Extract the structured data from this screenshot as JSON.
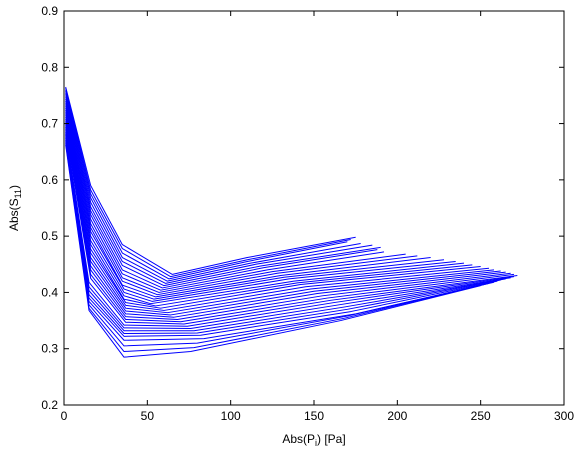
{
  "chart_data": {
    "type": "line",
    "xlabel": "Abs(P",
    "xlabel_sub": "i",
    "xlabel_suffix": ") [Pa]",
    "ylabel": "Abs(S",
    "ylabel_sub": "11",
    "ylabel_suffix": ")",
    "xlim": [
      0,
      300
    ],
    "ylim": [
      0.2,
      0.9
    ],
    "xticks": [
      0,
      50,
      100,
      150,
      200,
      250,
      300
    ],
    "yticks": [
      0.2,
      0.3,
      0.4,
      0.5,
      0.6,
      0.7,
      0.8,
      0.9
    ],
    "xtick_labels": [
      "0",
      "50",
      "100",
      "150",
      "200",
      "250",
      "300"
    ],
    "ytick_labels": [
      "0.2",
      "0.3",
      "0.4",
      "0.5",
      "0.6",
      "0.7",
      "0.8",
      "0.9"
    ],
    "grid": false,
    "line_color": "#0000ff",
    "series": [
      {
        "x": [
          1,
          16,
          35,
          65,
          110,
          175
        ],
        "y": [
          0.765,
          0.59,
          0.485,
          0.432,
          0.462,
          0.498
        ]
      },
      {
        "x": [
          1,
          16,
          35,
          64,
          110,
          172
        ],
        "y": [
          0.763,
          0.582,
          0.478,
          0.428,
          0.458,
          0.494
        ]
      },
      {
        "x": [
          1,
          16,
          35,
          63,
          110,
          170
        ],
        "y": [
          0.76,
          0.575,
          0.47,
          0.424,
          0.455,
          0.49
        ]
      },
      {
        "x": [
          1,
          16,
          35,
          62,
          112,
          178
        ],
        "y": [
          0.758,
          0.568,
          0.462,
          0.42,
          0.452,
          0.487
        ]
      },
      {
        "x": [
          1,
          16,
          35,
          61,
          115,
          185
        ],
        "y": [
          0.755,
          0.56,
          0.455,
          0.416,
          0.45,
          0.484
        ]
      },
      {
        "x": [
          1,
          16,
          35,
          60,
          118,
          190
        ],
        "y": [
          0.752,
          0.552,
          0.448,
          0.412,
          0.447,
          0.48
        ]
      },
      {
        "x": [
          1,
          16,
          35,
          59,
          120,
          188
        ],
        "y": [
          0.748,
          0.545,
          0.44,
          0.408,
          0.444,
          0.476
        ]
      },
      {
        "x": [
          1,
          16,
          35,
          58,
          122,
          192
        ],
        "y": [
          0.744,
          0.538,
          0.433,
          0.404,
          0.44,
          0.472
        ]
      },
      {
        "x": [
          1,
          16,
          35,
          57,
          125,
          205
        ],
        "y": [
          0.74,
          0.53,
          0.426,
          0.4,
          0.437,
          0.468
        ]
      },
      {
        "x": [
          1,
          16,
          35,
          56,
          128,
          212
        ],
        "y": [
          0.736,
          0.522,
          0.42,
          0.396,
          0.434,
          0.465
        ]
      },
      {
        "x": [
          1,
          16,
          35,
          55,
          130,
          220
        ],
        "y": [
          0.732,
          0.515,
          0.413,
          0.392,
          0.43,
          0.462
        ]
      },
      {
        "x": [
          1,
          16,
          36,
          54,
          132,
          228
        ],
        "y": [
          0.728,
          0.508,
          0.406,
          0.388,
          0.427,
          0.458
        ]
      },
      {
        "x": [
          1,
          16,
          36,
          53,
          135,
          235
        ],
        "y": [
          0.724,
          0.5,
          0.4,
          0.384,
          0.424,
          0.455
        ]
      },
      {
        "x": [
          1,
          16,
          36,
          52,
          138,
          240
        ],
        "y": [
          0.72,
          0.492,
          0.394,
          0.38,
          0.42,
          0.452
        ]
      },
      {
        "x": [
          1,
          16,
          36,
          55,
          140,
          245
        ],
        "y": [
          0.716,
          0.485,
          0.388,
          0.376,
          0.417,
          0.449
        ]
      },
      {
        "x": [
          1,
          16,
          37,
          58,
          142,
          250
        ],
        "y": [
          0.712,
          0.477,
          0.382,
          0.372,
          0.414,
          0.446
        ]
      },
      {
        "x": [
          1,
          16,
          37,
          60,
          145,
          255
        ],
        "y": [
          0.708,
          0.47,
          0.377,
          0.368,
          0.41,
          0.443
        ]
      },
      {
        "x": [
          1,
          16,
          37,
          62,
          148,
          258
        ],
        "y": [
          0.704,
          0.462,
          0.372,
          0.364,
          0.406,
          0.44
        ]
      },
      {
        "x": [
          1,
          16,
          37,
          64,
          150,
          262
        ],
        "y": [
          0.7,
          0.455,
          0.367,
          0.36,
          0.402,
          0.438
        ]
      },
      {
        "x": [
          1,
          16,
          37,
          66,
          152,
          265
        ],
        "y": [
          0.697,
          0.447,
          0.362,
          0.356,
          0.398,
          0.436
        ]
      },
      {
        "x": [
          1,
          16,
          37,
          68,
          155,
          268
        ],
        "y": [
          0.694,
          0.44,
          0.357,
          0.352,
          0.394,
          0.434
        ]
      },
      {
        "x": [
          1,
          16,
          37,
          70,
          158,
          270
        ],
        "y": [
          0.691,
          0.432,
          0.352,
          0.348,
          0.39,
          0.432
        ]
      },
      {
        "x": [
          1,
          16,
          37,
          72,
          160,
          272
        ],
        "y": [
          0.688,
          0.425,
          0.347,
          0.344,
          0.386,
          0.43
        ]
      },
      {
        "x": [
          1,
          15,
          36,
          74,
          162,
          270
        ],
        "y": [
          0.685,
          0.418,
          0.342,
          0.34,
          0.382,
          0.428
        ]
      },
      {
        "x": [
          1,
          15,
          36,
          76,
          165,
          268
        ],
        "y": [
          0.682,
          0.41,
          0.337,
          0.336,
          0.378,
          0.426
        ]
      },
      {
        "x": [
          1,
          15,
          36,
          78,
          168,
          265
        ],
        "y": [
          0.68,
          0.403,
          0.332,
          0.332,
          0.374,
          0.424
        ]
      },
      {
        "x": [
          1,
          15,
          36,
          80,
          170,
          262
        ],
        "y": [
          0.677,
          0.396,
          0.327,
          0.328,
          0.37,
          0.422
        ]
      },
      {
        "x": [
          1,
          15,
          36,
          82,
          172,
          260
        ],
        "y": [
          0.674,
          0.39,
          0.322,
          0.324,
          0.366,
          0.42
        ]
      },
      {
        "x": [
          1,
          15,
          36,
          84,
          175,
          258
        ],
        "y": [
          0.671,
          0.384,
          0.315,
          0.318,
          0.362,
          0.418
        ]
      },
      {
        "x": [
          1,
          15,
          36,
          80,
          170,
          255
        ],
        "y": [
          0.668,
          0.378,
          0.305,
          0.31,
          0.358,
          0.416
        ]
      },
      {
        "x": [
          1,
          15,
          36,
          78,
          168,
          252
        ],
        "y": [
          0.665,
          0.372,
          0.295,
          0.302,
          0.354,
          0.414
        ]
      },
      {
        "x": [
          1,
          15,
          36,
          76,
          166,
          250
        ],
        "y": [
          0.662,
          0.368,
          0.285,
          0.295,
          0.35,
          0.412
        ]
      }
    ]
  }
}
